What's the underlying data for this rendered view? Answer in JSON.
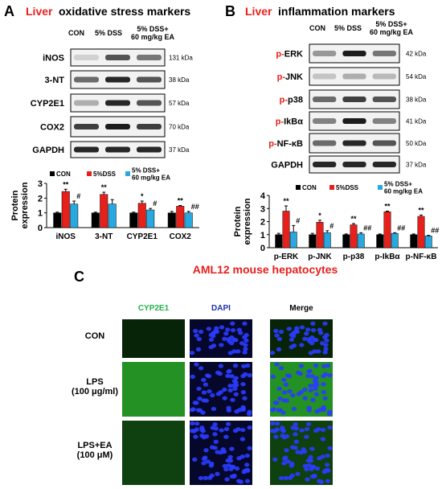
{
  "panels": {
    "A": {
      "letter": "A",
      "title_highlight": "Liver",
      "title": "oxidative stress markers",
      "columns": [
        "CON",
        "5% DSS",
        "5% DSS+\n60 mg/kg EA"
      ],
      "blots": [
        {
          "label": "iNOS",
          "kda": "131 kDa"
        },
        {
          "label": "3-NT",
          "kda": "38 kDa"
        },
        {
          "label": "CYP2E1",
          "kda": "57 kDa"
        },
        {
          "label": "COX2",
          "kda": "70 kDa"
        },
        {
          "label": "GAPDH",
          "kda": "37 kDa"
        }
      ]
    },
    "B": {
      "letter": "B",
      "title_highlight": "Liver",
      "title": "inflammation markers",
      "columns": [
        "CON",
        "5% DSS",
        "5% DSS+\n60 mg/kg EA"
      ],
      "blots": [
        {
          "prefix": "p-",
          "label": "ERK",
          "kda": "42 kDa"
        },
        {
          "prefix": "p-",
          "label": "JNK",
          "kda": "54 kDa"
        },
        {
          "prefix": "p-",
          "label": "p38",
          "kda": "38 kDa"
        },
        {
          "prefix": "p-",
          "label": "IkBα",
          "kda": "41 kDa"
        },
        {
          "prefix": "p-",
          "label": "NF-κB",
          "kda": "50 kDa"
        },
        {
          "label": "GAPDH",
          "kda": "37 kDa"
        }
      ]
    },
    "C": {
      "letter": "C",
      "title": "AML12 mouse hepatocytes",
      "columns": [
        "CYP2E1",
        "DAPI",
        "Merge"
      ],
      "rows": [
        "CON",
        "LPS\n(100 μg/ml)",
        "LPS+EA\n(100 μM)"
      ]
    }
  },
  "chart_data": [
    {
      "type": "bar",
      "y_label": "Protein\nexpression",
      "categories": [
        "iNOS",
        "3-NT",
        "CYP2E1",
        "COX2"
      ],
      "ylim": [
        0,
        3
      ],
      "yticks": [
        0,
        1,
        2,
        3
      ],
      "series": [
        {
          "name": "CON",
          "color": "#000000",
          "values": [
            1,
            1,
            1,
            1
          ],
          "errors": [
            0.05,
            0.05,
            0.05,
            0.1
          ]
        },
        {
          "name": "5%DSS",
          "color": "#e8201c",
          "values": [
            2.45,
            2.25,
            1.65,
            1.45
          ],
          "errors": [
            0.15,
            0.15,
            0.15,
            0.05
          ],
          "sig_labels": [
            "**",
            "**",
            "*",
            "**"
          ]
        },
        {
          "name": "5% DSS+\n60 mg/kg EA",
          "color": "#29a8e0",
          "values": [
            1.6,
            1.6,
            1.2,
            1.0
          ],
          "errors": [
            0.2,
            0.3,
            0.1,
            0.1
          ],
          "sig_labels": [
            "#",
            null,
            "#",
            "##"
          ]
        }
      ]
    },
    {
      "type": "bar",
      "y_label": "Protein\nexpression",
      "categories": [
        "p-ERK",
        "p-JNK",
        "p-p38",
        "p-IkBα",
        "p-NF-κB"
      ],
      "ylim": [
        0,
        4
      ],
      "yticks": [
        0,
        1,
        2,
        3,
        4
      ],
      "series": [
        {
          "name": "CON",
          "color": "#000000",
          "values": [
            1,
            1,
            1,
            1,
            1
          ],
          "errors": [
            0.1,
            0.1,
            0.05,
            0.05,
            0.05
          ]
        },
        {
          "name": "5%DSS",
          "color": "#e8201c",
          "values": [
            2.8,
            1.95,
            1.75,
            2.75,
            2.4
          ],
          "errors": [
            0.4,
            0.15,
            0.1,
            0.05,
            0.1
          ],
          "sig_labels": [
            "**",
            "*",
            "**",
            "**",
            "**"
          ]
        },
        {
          "name": "5% DSS+\n60 mg/kg EA",
          "color": "#29a8e0",
          "values": [
            1.2,
            1.15,
            1.05,
            1.1,
            0.9
          ],
          "errors": [
            0.5,
            0.15,
            0.1,
            0.05,
            0.05
          ],
          "sig_labels": [
            "#",
            "#",
            "##",
            "##",
            "##"
          ]
        }
      ]
    }
  ]
}
